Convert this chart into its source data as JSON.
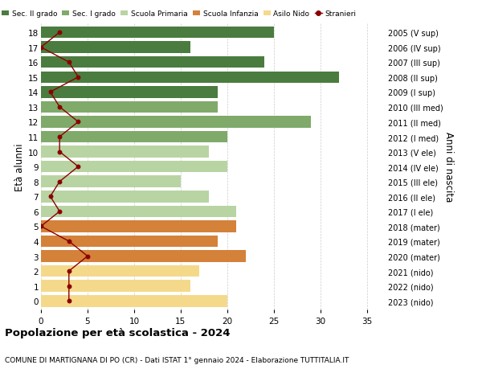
{
  "ages": [
    18,
    17,
    16,
    15,
    14,
    13,
    12,
    11,
    10,
    9,
    8,
    7,
    6,
    5,
    4,
    3,
    2,
    1,
    0
  ],
  "right_labels": [
    "2005 (V sup)",
    "2006 (IV sup)",
    "2007 (III sup)",
    "2008 (II sup)",
    "2009 (I sup)",
    "2010 (III med)",
    "2011 (II med)",
    "2012 (I med)",
    "2013 (V ele)",
    "2014 (IV ele)",
    "2015 (III ele)",
    "2016 (II ele)",
    "2017 (I ele)",
    "2018 (mater)",
    "2019 (mater)",
    "2020 (mater)",
    "2021 (nido)",
    "2022 (nido)",
    "2023 (nido)"
  ],
  "bar_values": [
    25,
    16,
    24,
    32,
    19,
    19,
    29,
    20,
    18,
    20,
    15,
    18,
    21,
    21,
    19,
    22,
    17,
    16,
    20
  ],
  "bar_colors": [
    "#4a7c3f",
    "#4a7c3f",
    "#4a7c3f",
    "#4a7c3f",
    "#4a7c3f",
    "#7faa6a",
    "#7faa6a",
    "#7faa6a",
    "#b8d4a3",
    "#b8d4a3",
    "#b8d4a3",
    "#b8d4a3",
    "#b8d4a3",
    "#d4813a",
    "#d4813a",
    "#d4813a",
    "#f5d98b",
    "#f5d98b",
    "#f5d98b"
  ],
  "stranieri_values": [
    2,
    0,
    3,
    4,
    1,
    2,
    4,
    2,
    2,
    4,
    2,
    1,
    2,
    0,
    3,
    5,
    3,
    3,
    3
  ],
  "stranieri_color": "#8b0000",
  "legend_labels": [
    "Sec. II grado",
    "Sec. I grado",
    "Scuola Primaria",
    "Scuola Infanzia",
    "Asilo Nido",
    "Stranieri"
  ],
  "legend_colors": [
    "#4a7c3f",
    "#7faa6a",
    "#b8d4a3",
    "#d4813a",
    "#f5d98b",
    "#8b0000"
  ],
  "title": "Popolazione per età scolastica - 2024",
  "subtitle": "COMUNE DI MARTIGNANA DI PO (CR) - Dati ISTAT 1° gennaio 2024 - Elaborazione TUTTITALIA.IT",
  "ylabel": "Età alunni",
  "ylabel_right": "Anni di nascita",
  "xlim": [
    0,
    37
  ],
  "background_color": "#ffffff",
  "grid_color": "#cccccc"
}
